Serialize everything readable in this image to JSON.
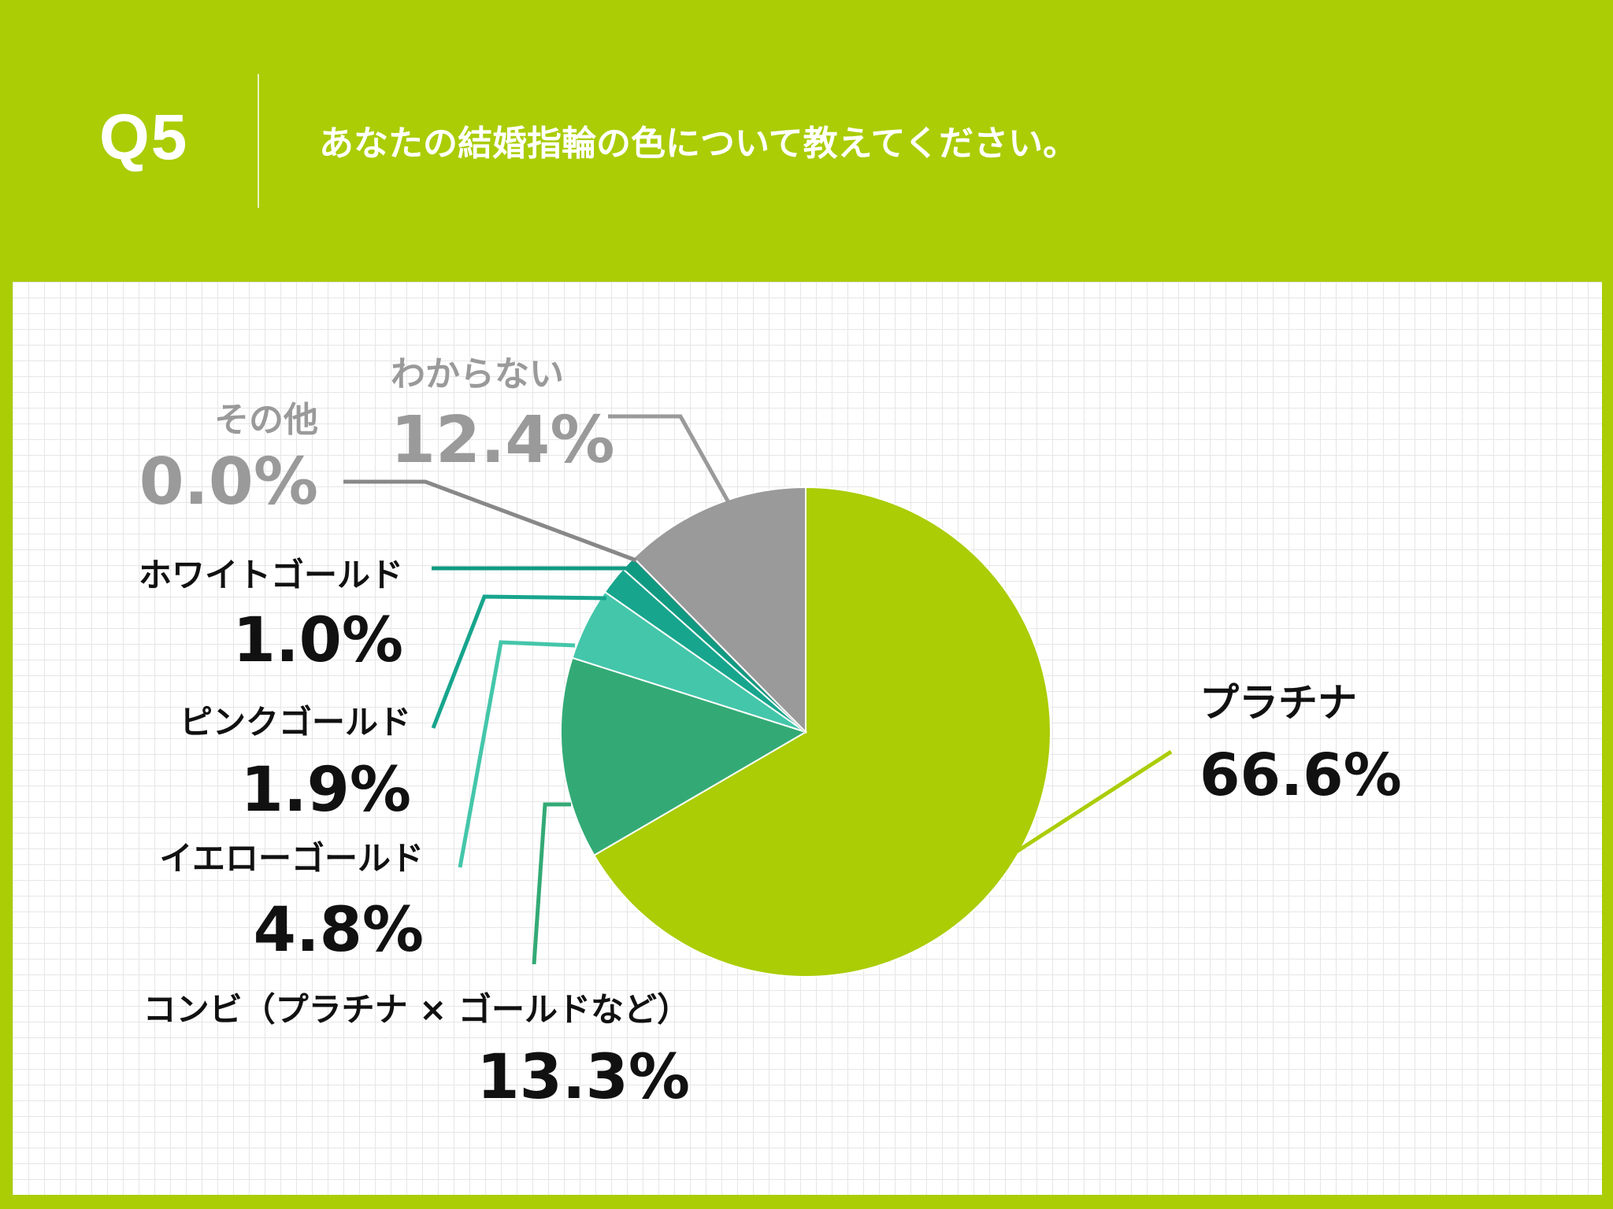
{
  "header": {
    "number": "Q5",
    "question": "あなたの結婚指輪の色について教えてください。"
  },
  "colors": {
    "accent": "#aacd05",
    "label_dark": "#111111",
    "label_gray": "#9a9a9a"
  },
  "chart_data": {
    "type": "pie",
    "title": "",
    "start_angle_deg": 0,
    "direction": "clockwise",
    "slices": [
      {
        "label": "プラチナ",
        "value": 66.6,
        "value_text": "66.6%",
        "color": "#aacd05"
      },
      {
        "label": "コンビ（プラチナ × ゴールドなど）",
        "value": 13.3,
        "value_text": "13.3%",
        "color": "#33aa75"
      },
      {
        "label": "イエローゴールド",
        "value": 4.8,
        "value_text": "4.8%",
        "color": "#44c6aa"
      },
      {
        "label": "ピンクゴールド",
        "value": 1.9,
        "value_text": "1.9%",
        "color": "#17a58d"
      },
      {
        "label": "ホワイトゴールド",
        "value": 1.0,
        "value_text": "1.0%",
        "color": "#119a82"
      },
      {
        "label": "その他",
        "value": 0.0,
        "value_text": "0.0%",
        "color": "#8a8a8a"
      },
      {
        "label": "わからない",
        "value": 12.4,
        "value_text": "12.4%",
        "color": "#9a9a9a"
      }
    ]
  }
}
